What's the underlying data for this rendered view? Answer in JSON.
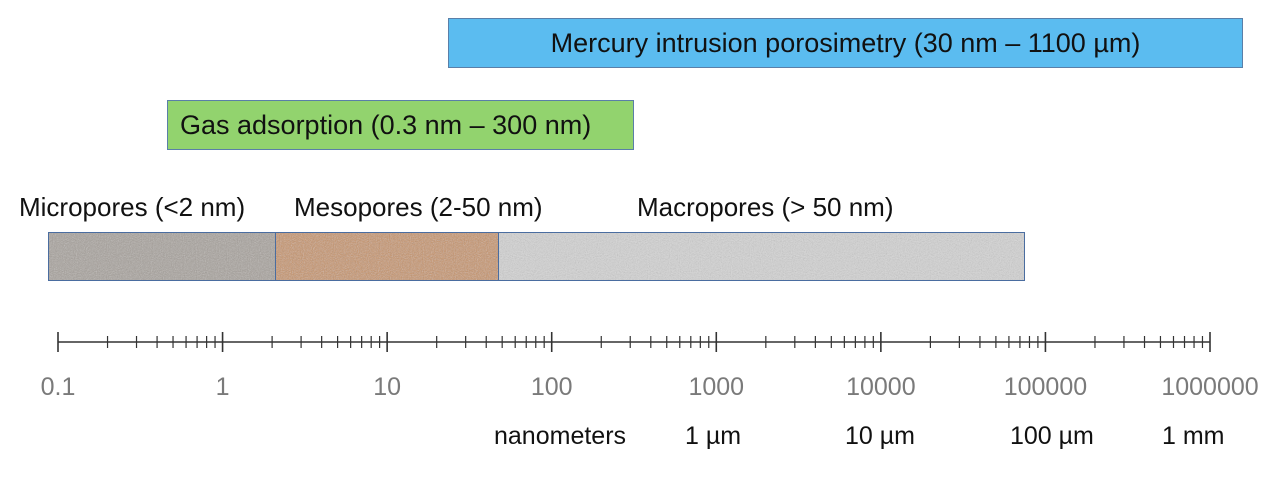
{
  "methods": {
    "mercury": {
      "label": "Mercury intrusion porosimetry (30 nm – 1100 µm)",
      "color": "#5bbcf0"
    },
    "gas": {
      "label": "Gas adsorption (0.3 nm – 300 nm)",
      "color": "#92d36e"
    }
  },
  "pores": [
    {
      "name": "micropores",
      "label": "Micropores (<2 nm)",
      "texture": "#a8a29c",
      "speckle": "#6c625c"
    },
    {
      "name": "mesopores",
      "label": "Mesopores (2-50 nm)",
      "texture": "#c99466",
      "speckle": "#8a5a34"
    },
    {
      "name": "macropores",
      "label": "Macropores (> 50 nm)",
      "texture": "#d4d4d4",
      "speckle": "#7a7a7a"
    }
  ],
  "scale": {
    "type": "log",
    "unit": "nanometers",
    "min": 0.1,
    "max": 1000000,
    "tick_labels": [
      "0.1",
      "1",
      "10",
      "100",
      "1000",
      "10000",
      "100000",
      "1000000"
    ],
    "line_color": "#333333",
    "label_color": "#7a7a7a"
  },
  "unit_labels": [
    "nanometers",
    "1 µm",
    "10 µm",
    "100 µm",
    "1 mm"
  ]
}
